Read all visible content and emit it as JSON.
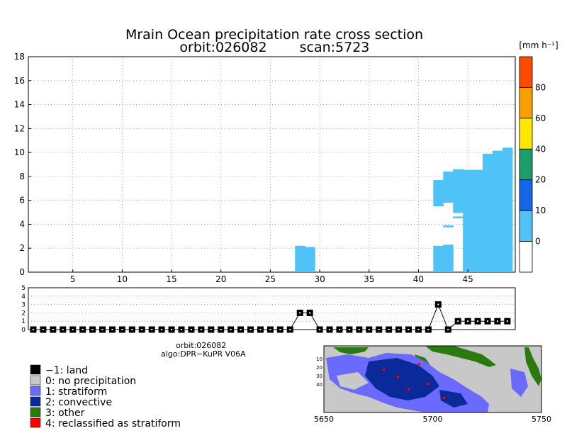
{
  "chart_data": [
    {
      "type": "heatmap",
      "title": "Mrain Ocean precipitation rate cross section",
      "subtitle_orbit": "orbit:026082",
      "subtitle_scan": "scan:5723",
      "xlim": [
        1,
        49
      ],
      "ylim": [
        0,
        18
      ],
      "x_ticks": [
        5,
        10,
        15,
        20,
        25,
        30,
        35,
        40,
        45
      ],
      "y_ticks": [
        0,
        2,
        4,
        6,
        8,
        10,
        12,
        14,
        16,
        18
      ],
      "grid": true,
      "color_unit": "[mm h⁻¹]",
      "colorbar": {
        "tick_labels": [
          "0",
          "10",
          "20",
          "40",
          "60",
          "80"
        ],
        "colors": [
          "#ffffff",
          "#4fc3f7",
          "#1565e8",
          "#1a9e6a",
          "#ffe800",
          "#f7a000",
          "#ff4a00"
        ]
      },
      "rain_color": "#4fc3f7",
      "columns": [
        {
          "x": 28,
          "bottom": 0,
          "top": 2.2
        },
        {
          "x": 29,
          "bottom": 0,
          "top": 2.1
        },
        {
          "x": 42,
          "bottom": 0,
          "top": 2.2
        },
        {
          "x": 43,
          "bottom": 0,
          "top": 2.3
        },
        {
          "x": 43,
          "bottom": 3.75,
          "top": 3.9
        },
        {
          "x": 42,
          "bottom": 5.5,
          "top": 7.7
        },
        {
          "x": 43,
          "bottom": 5.8,
          "top": 8.4
        },
        {
          "x": 44,
          "bottom": 4.5,
          "top": 4.65
        },
        {
          "x": 44,
          "bottom": 4.95,
          "top": 8.6
        },
        {
          "x": 45,
          "bottom": 0,
          "top": 8.55
        },
        {
          "x": 46,
          "bottom": 0,
          "top": 8.55
        },
        {
          "x": 47,
          "bottom": 0,
          "top": 9.9
        },
        {
          "x": 48,
          "bottom": 0,
          "top": 10.15
        },
        {
          "x": 49,
          "bottom": 0,
          "top": 10.4
        }
      ]
    },
    {
      "type": "line",
      "xlim": [
        1,
        49
      ],
      "ylim": [
        0,
        5
      ],
      "y_ticks": [
        0,
        1,
        2,
        3,
        4,
        5
      ],
      "x": [
        1,
        2,
        3,
        4,
        5,
        6,
        7,
        8,
        9,
        10,
        11,
        12,
        13,
        14,
        15,
        16,
        17,
        18,
        19,
        20,
        21,
        22,
        23,
        24,
        25,
        26,
        27,
        28,
        29,
        30,
        31,
        32,
        33,
        34,
        35,
        36,
        37,
        38,
        39,
        40,
        41,
        42,
        43,
        44,
        45,
        46,
        47,
        48,
        49
      ],
      "y": [
        0,
        0,
        0,
        0,
        0,
        0,
        0,
        0,
        0,
        0,
        0,
        0,
        0,
        0,
        0,
        0,
        0,
        0,
        0,
        0,
        0,
        0,
        0,
        0,
        0,
        0,
        0,
        2,
        2,
        0,
        0,
        0,
        0,
        0,
        0,
        0,
        0,
        0,
        0,
        0,
        0,
        3,
        0,
        1,
        1,
        1,
        1,
        1,
        1
      ]
    }
  ],
  "info": {
    "orbit": "orbit:026082",
    "algo": "algo:DPR−KuPR V06A"
  },
  "legend": [
    {
      "label": "−1: land",
      "color": "#000000"
    },
    {
      "label": "0: no precipitation",
      "color": "#c8c8c8"
    },
    {
      "label": "1: stratiform",
      "color": "#6a6aff"
    },
    {
      "label": "2: convective",
      "color": "#0a2a9a"
    },
    {
      "label": "3: other",
      "color": "#2a7a10"
    },
    {
      "label": "4: reclassified as stratiform",
      "color": "#ff0000"
    }
  ],
  "map": {
    "x_tick_labels": [
      "5650",
      "5700",
      "5750"
    ],
    "y_tick_labels": [
      "10",
      "20",
      "30",
      "40"
    ]
  }
}
